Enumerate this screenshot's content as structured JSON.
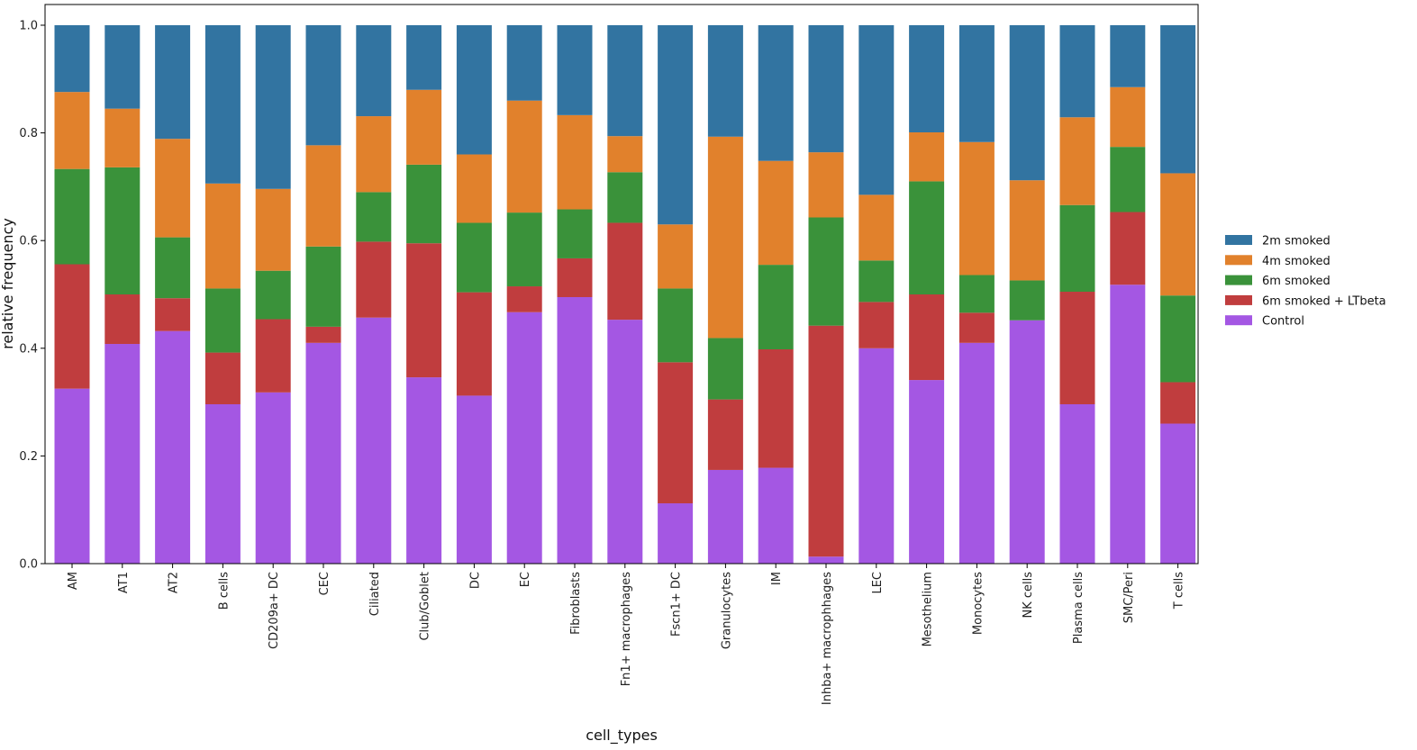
{
  "chart_data": {
    "type": "bar",
    "stacked": true,
    "xlabel": "cell_types",
    "ylabel": "relative frequency",
    "ylim": [
      0,
      1.0
    ],
    "yticks": [
      "0.0",
      "0.2",
      "0.4",
      "0.6",
      "0.8",
      "1.0"
    ],
    "grid": false,
    "legend_position": "right",
    "categories": [
      "AM",
      "AT1",
      "AT2",
      "B cells",
      "CD209a+ DC",
      "CEC",
      "Ciliated",
      "Club/Goblet",
      "DC",
      "EC",
      "Fibroblasts",
      "Fn1+ macrophages",
      "Fscn1+ DC",
      "Granulocytes",
      "IM",
      "Inhba+ macrophhages",
      "LEC",
      "Mesothelium",
      "Monocytes",
      "NK cells",
      "Plasma cells",
      "SMC/Peri",
      "T cells"
    ],
    "series": [
      {
        "name": "Control",
        "color": "#a457e3",
        "values": [
          0.325,
          0.408,
          0.432,
          0.296,
          0.318,
          0.41,
          0.457,
          0.346,
          0.312,
          0.467,
          0.495,
          0.453,
          0.112,
          0.174,
          0.178,
          0.013,
          0.4,
          0.341,
          0.41,
          0.452,
          0.296,
          0.518,
          0.26
        ]
      },
      {
        "name": "6m smoked + LTbeta",
        "color": "#c03d3e",
        "values": [
          0.231,
          0.092,
          0.061,
          0.096,
          0.136,
          0.03,
          0.141,
          0.249,
          0.192,
          0.048,
          0.072,
          0.18,
          0.262,
          0.131,
          0.22,
          0.429,
          0.086,
          0.159,
          0.056,
          0.0,
          0.209,
          0.135,
          0.077
        ]
      },
      {
        "name": "6m smoked",
        "color": "#3a923a",
        "values": [
          0.177,
          0.236,
          0.113,
          0.119,
          0.09,
          0.149,
          0.092,
          0.146,
          0.129,
          0.137,
          0.091,
          0.094,
          0.137,
          0.114,
          0.157,
          0.201,
          0.077,
          0.21,
          0.07,
          0.074,
          0.161,
          0.121,
          0.161
        ]
      },
      {
        "name": "4m smoked",
        "color": "#e1812c",
        "values": [
          0.143,
          0.109,
          0.183,
          0.195,
          0.152,
          0.188,
          0.141,
          0.139,
          0.127,
          0.208,
          0.175,
          0.067,
          0.119,
          0.374,
          0.193,
          0.121,
          0.122,
          0.091,
          0.247,
          0.186,
          0.163,
          0.111,
          0.227
        ]
      },
      {
        "name": "2m smoked",
        "color": "#3274a1",
        "values": [
          0.124,
          0.155,
          0.211,
          0.294,
          0.304,
          0.223,
          0.169,
          0.12,
          0.24,
          0.14,
          0.167,
          0.206,
          0.37,
          0.207,
          0.252,
          0.236,
          0.315,
          0.199,
          0.217,
          0.288,
          0.171,
          0.115,
          0.275
        ]
      }
    ],
    "legend_order": [
      "2m smoked",
      "4m smoked",
      "6m smoked",
      "6m smoked + LTbeta",
      "Control"
    ]
  }
}
